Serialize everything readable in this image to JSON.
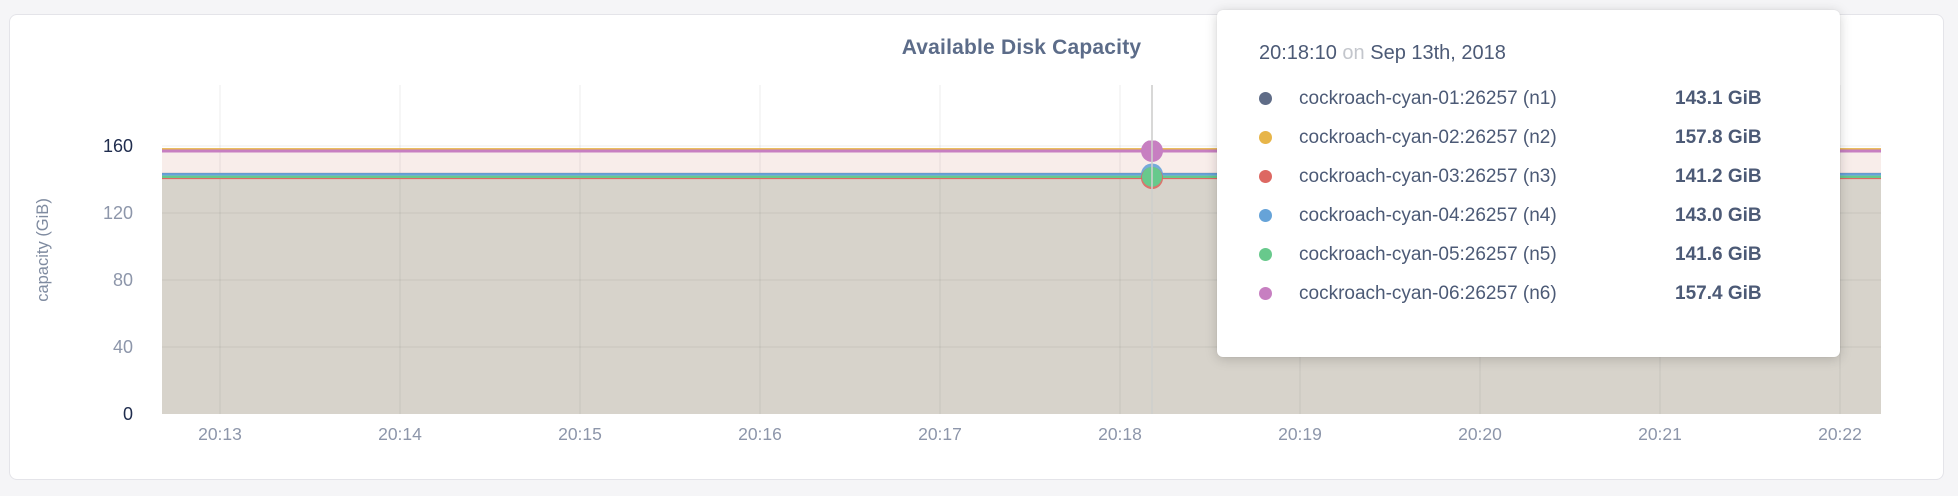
{
  "page": {
    "background": "#f5f5f7"
  },
  "chart": {
    "title": "Available Disk Capacity",
    "ylabel": "capacity (GiB)"
  },
  "tooltip": {
    "time": "20:18:10",
    "conj": "on",
    "date": "Sep 13th, 2018"
  },
  "chart_data": {
    "type": "area",
    "title": "Available Disk Capacity",
    "ylabel": "capacity (GiB)",
    "x_tick_labels": [
      "20:13",
      "20:14",
      "20:15",
      "20:16",
      "20:17",
      "20:18",
      "20:19",
      "20:20",
      "20:21",
      "20:22"
    ],
    "y_tick_values": [
      0,
      40,
      80,
      120,
      160
    ],
    "ylim": [
      0,
      165
    ],
    "grid": true,
    "hover_point": {
      "time": "20:18:10",
      "date": "Sep 13th, 2018"
    },
    "series": [
      {
        "id": "n1",
        "name": "cockroach-cyan-01:26257 (n1)",
        "value_gib": 143.1,
        "display_value": "143.1 GiB",
        "color": "#5f6c87"
      },
      {
        "id": "n2",
        "name": "cockroach-cyan-02:26257 (n2)",
        "value_gib": 157.8,
        "display_value": "157.8 GiB",
        "color": "#e7b549"
      },
      {
        "id": "n3",
        "name": "cockroach-cyan-03:26257 (n3)",
        "value_gib": 141.2,
        "display_value": "141.2 GiB",
        "color": "#dd6862"
      },
      {
        "id": "n4",
        "name": "cockroach-cyan-04:26257 (n4)",
        "value_gib": 143.0,
        "display_value": "143.0 GiB",
        "color": "#66a3d8"
      },
      {
        "id": "n5",
        "name": "cockroach-cyan-05:26257 (n5)",
        "value_gib": 141.6,
        "display_value": "141.6 GiB",
        "color": "#68c98c"
      },
      {
        "id": "n6",
        "name": "cockroach-cyan-06:26257 (n6)",
        "value_gib": 157.4,
        "display_value": "157.4 GiB",
        "color": "#c77fc1"
      }
    ],
    "fills": {
      "overlap_low": "#d7d3cb",
      "overlap_high": "#f8edea"
    },
    "colors": {
      "axis_text": "#8d96aa",
      "axis_text_extreme": "#202d4e",
      "title": "#5c6c89",
      "gridline": "rgba(60,60,60,0.07)",
      "crosshair": "#cfcfcd"
    }
  }
}
